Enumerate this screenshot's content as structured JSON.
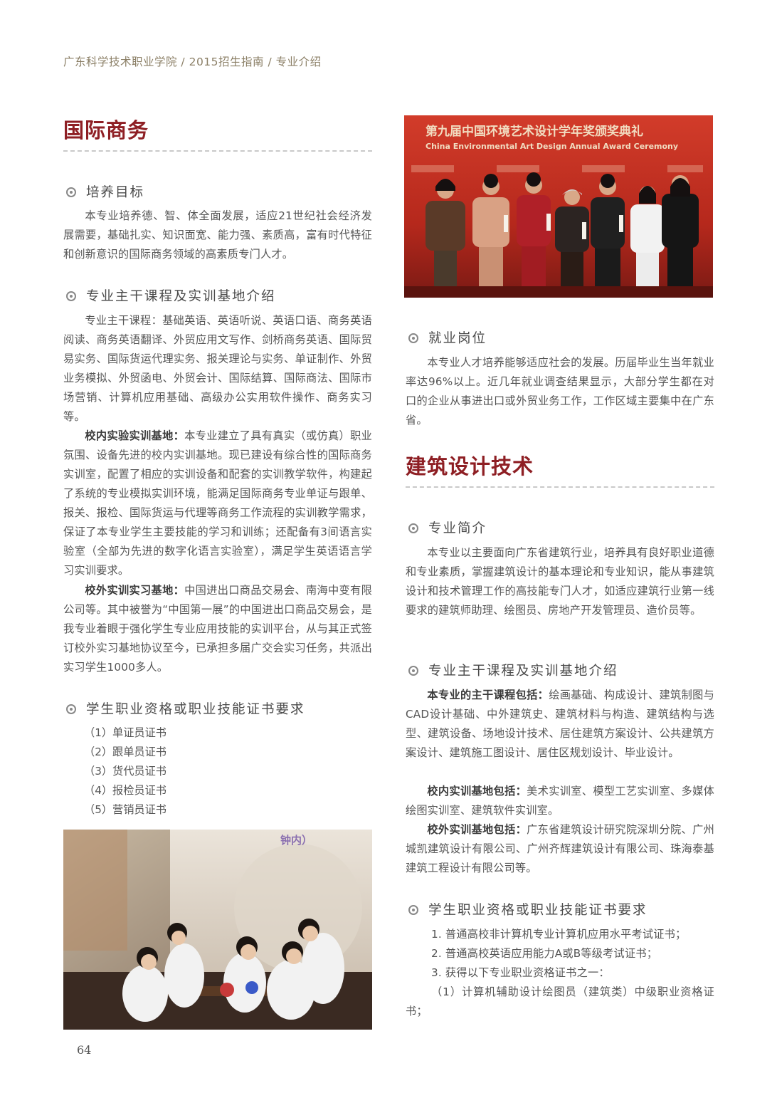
{
  "header": "广东科学技术职业学院 / 2015招生指南 /  专业介绍",
  "page_number": "64",
  "left": {
    "title": "国际商务",
    "sec1": {
      "heading": "培养目标",
      "text": "本专业培养德、智、体全面发展，适应21世纪社会经济发展需要，基础扎实、知识面宽、能力强、素质高，富有时代特征和创新意识的国际商务领域的高素质专门人才。"
    },
    "sec2": {
      "heading": "专业主干课程及实训基地介绍",
      "p1": "专业主干课程：基础英语、英语听说、英语口语、商务英语阅读、商务英语翻译、外贸应用文写作、剑桥商务英语、国际贸易实务、国际货运代理实务、报关理论与实务、单证制作、外贸业务模拟、外贸函电、外贸会计、国际结算、国际商法、国际市场营销、计算机应用基础、高级办公实用软件操作、商务实习等。",
      "p2_label": "校内实验实训基地：",
      "p2_text": "本专业建立了具有真实（或仿真）职业氛围、设备先进的校内实训基地。现已建设有综合性的国际商务实训室，配置了相应的实训设备和配套的实训教学软件，构建起了系统的专业模拟实训环境，能满足国际商务专业单证与跟单、报关、报检、国际货运与代理等商务工作流程的实训教学需求，保证了本专业学生主要技能的学习和训练；还配备有3间语言实验室（全部为先进的数字化语言实验室），满足学生英语语言学习实训要求。",
      "p3_label": "校外实训实习基地：",
      "p3_text": "中国进出口商品交易会、南海中变有限公司等。其中被誉为“中国第一展”的中国进出口商品交易会，是我专业着眼于强化学生专业应用技能的实训平台，从与其正式签订校外实习基地协议至今，已承担多届广交会实习任务，共派出实习学生1000多人。"
    },
    "sec3": {
      "heading": "学生职业资格或职业技能证书要求",
      "items": [
        "（1）单证员证书",
        "（2）跟单员证书",
        "（3）货代员证书",
        "（4）报检员证书",
        "（5）营销员证书"
      ]
    },
    "photo_caption_text": "钟内）"
  },
  "right": {
    "banner_cn": "第九届中国环境艺术设计学年奖颁奖典礼",
    "banner_en": "China Environmental Art Design Annual Award Ceremony",
    "job": {
      "heading": "就业岗位",
      "text": "本专业人才培养能够适应社会的发展。历届毕业生当年就业率达96%以上。近几年就业调查结果显示，大部分学生都在对口的企业从事进出口或外贸业务工作，工作区域主要集中在广东省。"
    },
    "title": "建筑设计技术",
    "intro": {
      "heading": "专业简介",
      "text": "本专业以主要面向广东省建筑行业，培养具有良好职业道德和专业素质，掌握建筑设计的基本理论和专业知识，能从事建筑设计和技术管理工作的高技能专门人才，如适应建筑行业第一线要求的建筑师助理、绘图员、房地产开发管理员、造价员等。"
    },
    "courses": {
      "heading": "专业主干课程及实训基地介绍",
      "p1_label": "本专业的主干课程包括：",
      "p1_text": "绘画基础、构成设计、建筑制图与CAD设计基础、中外建筑史、建筑材料与构造、建筑结构与选型、建筑设备、场地设计技术、居住建筑方案设计、公共建筑方案设计、建筑施工图设计、居住区规划设计、毕业设计。",
      "p2_label": "校内实训基地包括：",
      "p2_text": "美术实训室、模型工艺实训室、多媒体绘图实训室、建筑软件实训室。",
      "p3_label": "校外实训基地包括：",
      "p3_text": "广东省建筑设计研究院深圳分院、广州城凯建筑设计有限公司、广州齐辉建筑设计有限公司、珠海泰基建筑工程设计有限公司等。"
    },
    "cert": {
      "heading": "学生职业资格或职业技能证书要求",
      "i1": "1.   普通高校非计算机专业计算机应用水平考试证书；",
      "i2": "2.   普通高校英语应用能力A或B等级考试证书；",
      "i3": "3.   获得以下专业职业资格证书之一：",
      "i4": "（1）计算机辅助设计绘图员（建筑类）中级职业资格证书；"
    }
  }
}
